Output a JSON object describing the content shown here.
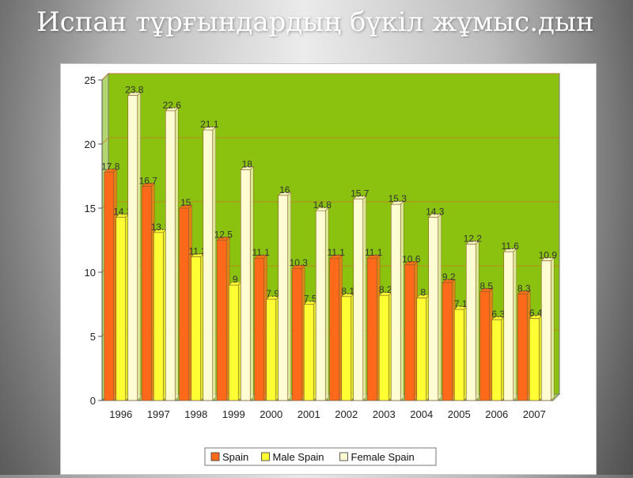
{
  "slide": {
    "title": "Испан тұрғындардың бүкіл жұмыс.дын"
  },
  "colors": {
    "plot_background": "#8bc20f",
    "plot_side": "#b4d670",
    "plot_floor": "#a8cc58",
    "spain": "#ff6a1a",
    "male_spain": "#ffff33",
    "female_spain": "#fdfcd2"
  },
  "chart_data": {
    "type": "bar",
    "title": "",
    "xlabel": "",
    "ylabel": "",
    "ylim": [
      0,
      25
    ],
    "yticks": [
      0,
      5,
      10,
      15,
      20,
      25
    ],
    "grid": true,
    "legend_position": "bottom",
    "categories": [
      "1996",
      "1997",
      "1998",
      "1999",
      "2000",
      "2001",
      "2002",
      "2003",
      "2004",
      "2005",
      "2006",
      "2007"
    ],
    "series": [
      {
        "name": "Spain",
        "values": [
          17.8,
          16.7,
          15,
          12.5,
          11.1,
          10.3,
          11.1,
          11.1,
          10.6,
          9.2,
          8.5,
          8.3
        ],
        "labels": [
          "17.8",
          "16.7",
          "15",
          "12.5",
          "11.1",
          "10.3",
          "11.1",
          "11.1",
          "10.6",
          "9.2",
          "8.5",
          "8.3"
        ]
      },
      {
        "name": "Male Spain",
        "values": [
          14.3,
          13.1,
          11.2,
          9,
          7.9,
          7.5,
          8.1,
          8.2,
          8,
          7.1,
          6.3,
          6.4
        ],
        "labels": [
          "14.3",
          "13.1",
          "11.2",
          "9",
          "7.9",
          "7.5",
          "8.1",
          "8.2",
          "8",
          "7.1",
          "6.3",
          "6.4"
        ]
      },
      {
        "name": "Female Spain",
        "values": [
          23.8,
          22.6,
          21.1,
          18,
          16,
          14.8,
          15.7,
          15.3,
          14.3,
          12.2,
          11.6,
          10.9
        ],
        "labels": [
          "23.8",
          "22.6",
          "21.1",
          "18",
          "16",
          "14.8",
          "15.7",
          "15.3",
          "14.3",
          "12.2",
          "11.6",
          "10.9"
        ]
      }
    ]
  }
}
